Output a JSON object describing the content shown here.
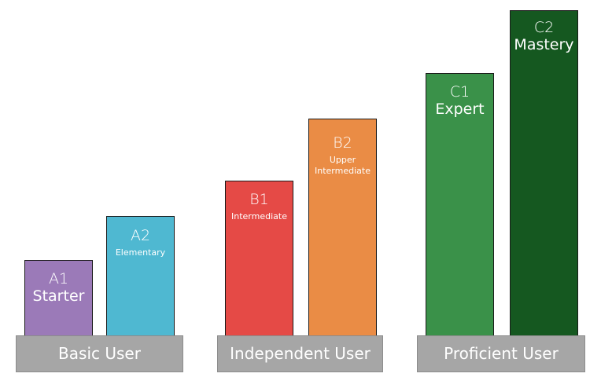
{
  "groups": [
    {
      "label": "Basic User",
      "levels": [
        {
          "code": "A1",
          "name": "Starter",
          "color": "#9b7ab8"
        },
        {
          "code": "A2",
          "name": "Elementary",
          "color": "#4fb8d1"
        }
      ]
    },
    {
      "label": "Independent User",
      "levels": [
        {
          "code": "B1",
          "name": "Intermediate",
          "color": "#e54a46"
        },
        {
          "code": "B2",
          "name": "Upper Intermediate",
          "color": "#ea8c45"
        }
      ]
    },
    {
      "label": "Proficient User",
      "levels": [
        {
          "code": "C1",
          "name": "Expert",
          "color": "#3a9149"
        },
        {
          "code": "C2",
          "name": "Mastery",
          "color": "#155820"
        }
      ]
    }
  ],
  "base_color": "#a6a6a6"
}
